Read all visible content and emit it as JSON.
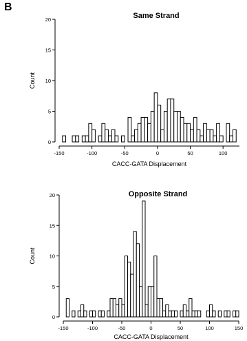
{
  "panel_label": "B",
  "chart_data": [
    {
      "type": "bar",
      "title": "Same Strand",
      "xlabel": "CACC-GATA Displacement",
      "ylabel": "Count",
      "xlim": [
        -150,
        125
      ],
      "ylim": [
        0,
        20
      ],
      "bin_width": 5,
      "xticks": [
        -150,
        -100,
        -50,
        0,
        50,
        100
      ],
      "yticks": [
        0,
        5,
        10,
        15,
        20
      ],
      "bins": [
        {
          "x": -145,
          "count": 1
        },
        {
          "x": -140,
          "count": 0
        },
        {
          "x": -135,
          "count": 0
        },
        {
          "x": -130,
          "count": 1
        },
        {
          "x": -125,
          "count": 1
        },
        {
          "x": -120,
          "count": 0
        },
        {
          "x": -115,
          "count": 1
        },
        {
          "x": -110,
          "count": 1
        },
        {
          "x": -105,
          "count": 3
        },
        {
          "x": -100,
          "count": 2
        },
        {
          "x": -95,
          "count": 0
        },
        {
          "x": -90,
          "count": 1
        },
        {
          "x": -85,
          "count": 3
        },
        {
          "x": -80,
          "count": 2
        },
        {
          "x": -75,
          "count": 1
        },
        {
          "x": -70,
          "count": 2
        },
        {
          "x": -65,
          "count": 1
        },
        {
          "x": -60,
          "count": 0
        },
        {
          "x": -55,
          "count": 1
        },
        {
          "x": -50,
          "count": 0
        },
        {
          "x": -45,
          "count": 4
        },
        {
          "x": -40,
          "count": 1
        },
        {
          "x": -35,
          "count": 2
        },
        {
          "x": -30,
          "count": 3
        },
        {
          "x": -25,
          "count": 4
        },
        {
          "x": -20,
          "count": 4
        },
        {
          "x": -15,
          "count": 3
        },
        {
          "x": -10,
          "count": 5
        },
        {
          "x": -5,
          "count": 8
        },
        {
          "x": 0,
          "count": 6
        },
        {
          "x": 5,
          "count": 2
        },
        {
          "x": 10,
          "count": 5
        },
        {
          "x": 15,
          "count": 7
        },
        {
          "x": 20,
          "count": 7
        },
        {
          "x": 25,
          "count": 5
        },
        {
          "x": 30,
          "count": 5
        },
        {
          "x": 35,
          "count": 4
        },
        {
          "x": 40,
          "count": 3
        },
        {
          "x": 45,
          "count": 3
        },
        {
          "x": 50,
          "count": 2
        },
        {
          "x": 55,
          "count": 4
        },
        {
          "x": 60,
          "count": 2
        },
        {
          "x": 65,
          "count": 1
        },
        {
          "x": 70,
          "count": 3
        },
        {
          "x": 75,
          "count": 2
        },
        {
          "x": 80,
          "count": 2
        },
        {
          "x": 85,
          "count": 1
        },
        {
          "x": 90,
          "count": 3
        },
        {
          "x": 95,
          "count": 1
        },
        {
          "x": 100,
          "count": 0
        },
        {
          "x": 105,
          "count": 3
        },
        {
          "x": 110,
          "count": 1
        },
        {
          "x": 115,
          "count": 2
        }
      ]
    },
    {
      "type": "bar",
      "title": "Opposite Strand",
      "xlabel": "CACC-GATA Displacement",
      "ylabel": "Count",
      "xlim": [
        -150,
        150
      ],
      "ylim": [
        0,
        20
      ],
      "bin_width": 5,
      "xticks": [
        -150,
        -100,
        -50,
        0,
        50,
        100,
        150
      ],
      "yticks": [
        0,
        5,
        10,
        15,
        20
      ],
      "bins": [
        {
          "x": -145,
          "count": 3
        },
        {
          "x": -140,
          "count": 0
        },
        {
          "x": -135,
          "count": 1
        },
        {
          "x": -130,
          "count": 0
        },
        {
          "x": -125,
          "count": 1
        },
        {
          "x": -120,
          "count": 2
        },
        {
          "x": -115,
          "count": 1
        },
        {
          "x": -110,
          "count": 0
        },
        {
          "x": -105,
          "count": 1
        },
        {
          "x": -100,
          "count": 1
        },
        {
          "x": -95,
          "count": 0
        },
        {
          "x": -90,
          "count": 1
        },
        {
          "x": -85,
          "count": 1
        },
        {
          "x": -80,
          "count": 0
        },
        {
          "x": -75,
          "count": 1
        },
        {
          "x": -70,
          "count": 3
        },
        {
          "x": -65,
          "count": 3
        },
        {
          "x": -60,
          "count": 2
        },
        {
          "x": -55,
          "count": 3
        },
        {
          "x": -50,
          "count": 2
        },
        {
          "x": -45,
          "count": 10
        },
        {
          "x": -40,
          "count": 9
        },
        {
          "x": -35,
          "count": 7
        },
        {
          "x": -30,
          "count": 14
        },
        {
          "x": -25,
          "count": 12
        },
        {
          "x": -20,
          "count": 5
        },
        {
          "x": -15,
          "count": 19
        },
        {
          "x": -10,
          "count": 2
        },
        {
          "x": -5,
          "count": 5
        },
        {
          "x": 0,
          "count": 5
        },
        {
          "x": 5,
          "count": 10
        },
        {
          "x": 10,
          "count": 3
        },
        {
          "x": 15,
          "count": 3
        },
        {
          "x": 20,
          "count": 1
        },
        {
          "x": 25,
          "count": 2
        },
        {
          "x": 30,
          "count": 1
        },
        {
          "x": 35,
          "count": 1
        },
        {
          "x": 40,
          "count": 1
        },
        {
          "x": 45,
          "count": 0
        },
        {
          "x": 50,
          "count": 1
        },
        {
          "x": 55,
          "count": 2
        },
        {
          "x": 60,
          "count": 1
        },
        {
          "x": 65,
          "count": 3
        },
        {
          "x": 70,
          "count": 1
        },
        {
          "x": 75,
          "count": 1
        },
        {
          "x": 80,
          "count": 1
        },
        {
          "x": 85,
          "count": 0
        },
        {
          "x": 90,
          "count": 0
        },
        {
          "x": 95,
          "count": 1
        },
        {
          "x": 100,
          "count": 2
        },
        {
          "x": 105,
          "count": 1
        },
        {
          "x": 110,
          "count": 0
        },
        {
          "x": 115,
          "count": 1
        },
        {
          "x": 120,
          "count": 0
        },
        {
          "x": 125,
          "count": 1
        },
        {
          "x": 130,
          "count": 1
        },
        {
          "x": 135,
          "count": 0
        },
        {
          "x": 140,
          "count": 1
        },
        {
          "x": 145,
          "count": 1
        }
      ]
    }
  ]
}
